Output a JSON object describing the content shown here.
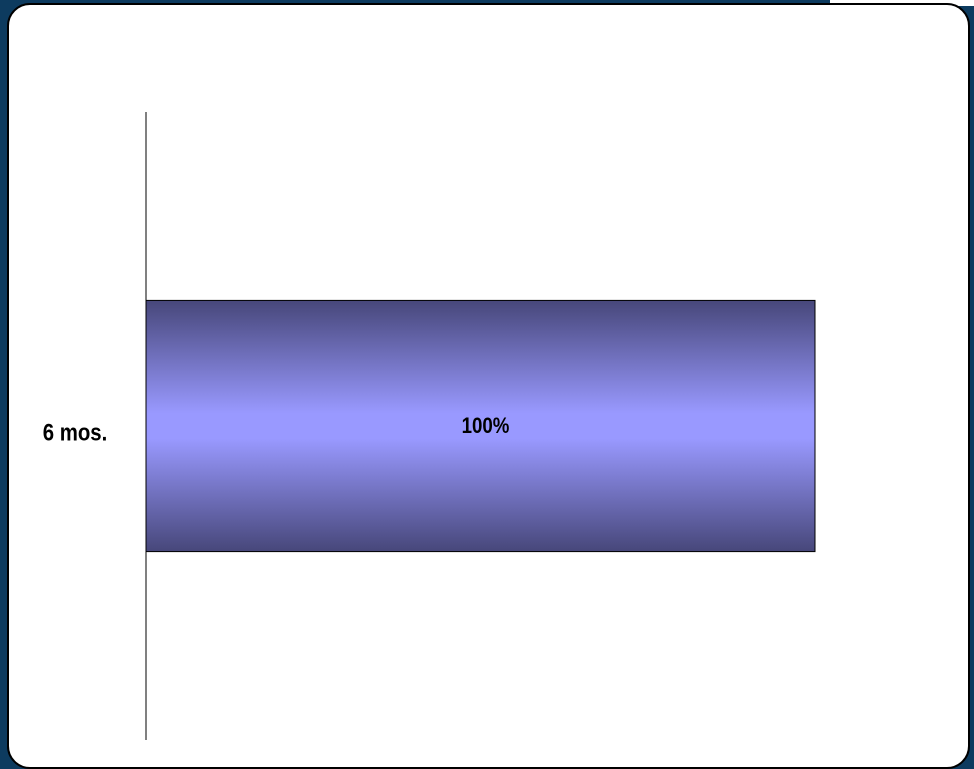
{
  "chart_data": {
    "type": "bar",
    "orientation": "horizontal",
    "categories": [
      "6 mos."
    ],
    "values": [
      100
    ],
    "value_labels": [
      "100%"
    ],
    "color": "#9999ff",
    "xlim": [
      0,
      100
    ]
  }
}
